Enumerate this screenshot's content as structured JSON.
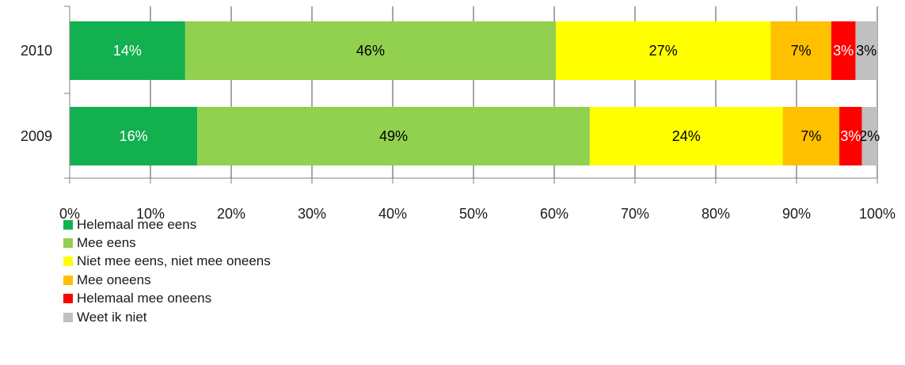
{
  "chart_data": {
    "type": "bar",
    "orientation": "horizontal",
    "stacked": true,
    "percent_stacked": true,
    "categories": [
      "2010",
      "2009"
    ],
    "series": [
      {
        "name": "Helemaal mee eens",
        "color": "#12b04f",
        "label_color": "#ffffff",
        "values": [
          14.3,
          15.8
        ],
        "labels": [
          "14%",
          "16%"
        ]
      },
      {
        "name": "Mee eens",
        "color": "#92d050",
        "label_color": "#000000",
        "values": [
          45.9,
          48.6
        ],
        "labels": [
          "46%",
          "49%"
        ]
      },
      {
        "name": "Niet mee eens, niet mee oneens",
        "color": "#ffff00",
        "label_color": "#000000",
        "values": [
          26.6,
          23.9
        ],
        "labels": [
          "27%",
          "24%"
        ]
      },
      {
        "name": "Mee oneens",
        "color": "#ffc000",
        "label_color": "#000000",
        "values": [
          7.5,
          7.0
        ],
        "labels": [
          "7%",
          "7%"
        ]
      },
      {
        "name": "Helemaal mee oneens",
        "color": "#ff0000",
        "label_color": "#ffffff",
        "values": [
          3.0,
          2.8
        ],
        "labels": [
          "3%",
          "3%"
        ]
      },
      {
        "name": "Weet ik niet",
        "color": "#c0c0c0",
        "label_color": "#000000",
        "values": [
          2.7,
          1.9
        ],
        "labels": [
          "3%",
          "2%"
        ]
      }
    ],
    "xlim": [
      0,
      100
    ],
    "x_ticks": [
      "0%",
      "10%",
      "20%",
      "30%",
      "40%",
      "50%",
      "60%",
      "70%",
      "80%",
      "90%",
      "100%"
    ],
    "grid": true,
    "legend_position": "bottom-left"
  }
}
